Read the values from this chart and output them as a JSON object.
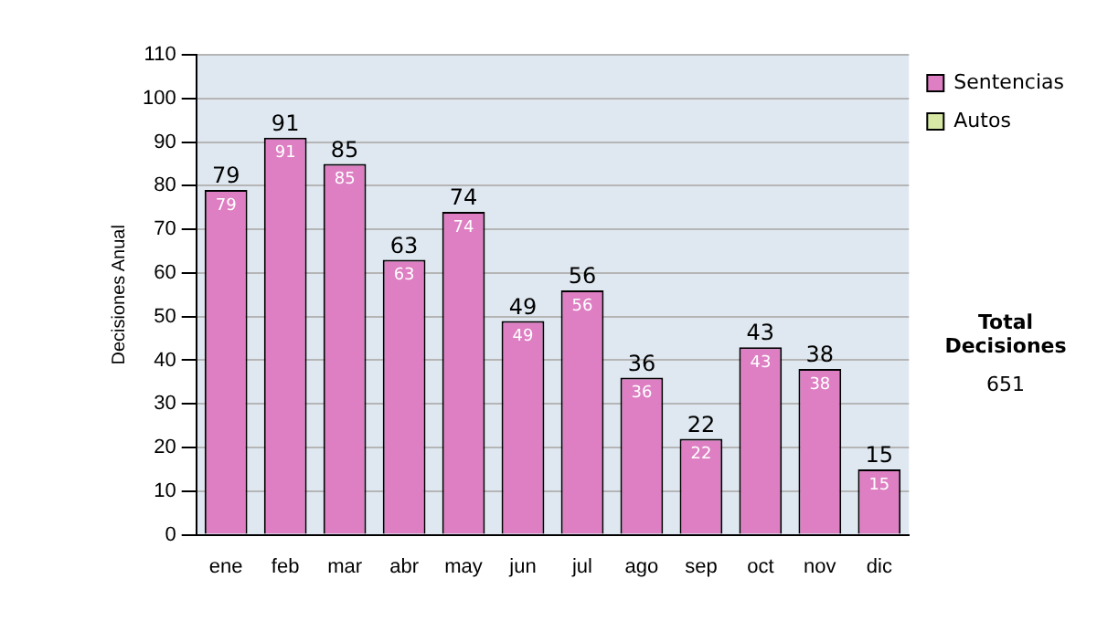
{
  "chart_data": {
    "type": "bar",
    "ylabel": "Decisiones Anual",
    "categories": [
      "ene",
      "feb",
      "mar",
      "abr",
      "may",
      "jun",
      "jul",
      "ago",
      "sep",
      "oct",
      "nov",
      "dic"
    ],
    "series": [
      {
        "name": "Sentencias",
        "color": "#dd7fc2",
        "values": [
          79,
          91,
          85,
          63,
          74,
          49,
          56,
          36,
          22,
          43,
          38,
          15
        ]
      },
      {
        "name": "Autos",
        "color": "#d6e8a4",
        "values": [
          null,
          null,
          null,
          null,
          null,
          null,
          null,
          null,
          null,
          null,
          null,
          null
        ]
      }
    ],
    "stacked": true,
    "totals": [
      "79",
      "91",
      "85",
      "63",
      "74",
      "49",
      "56",
      "36",
      "22",
      "43",
      "38",
      "15"
    ],
    "data_labels": true,
    "ylim": [
      0,
      110
    ],
    "yticks": [
      0,
      10,
      20,
      30,
      40,
      50,
      60,
      70,
      80,
      90,
      100,
      110
    ],
    "grid": "y",
    "legend": "right",
    "annotations": [
      "Total Decisiones",
      "651"
    ]
  }
}
